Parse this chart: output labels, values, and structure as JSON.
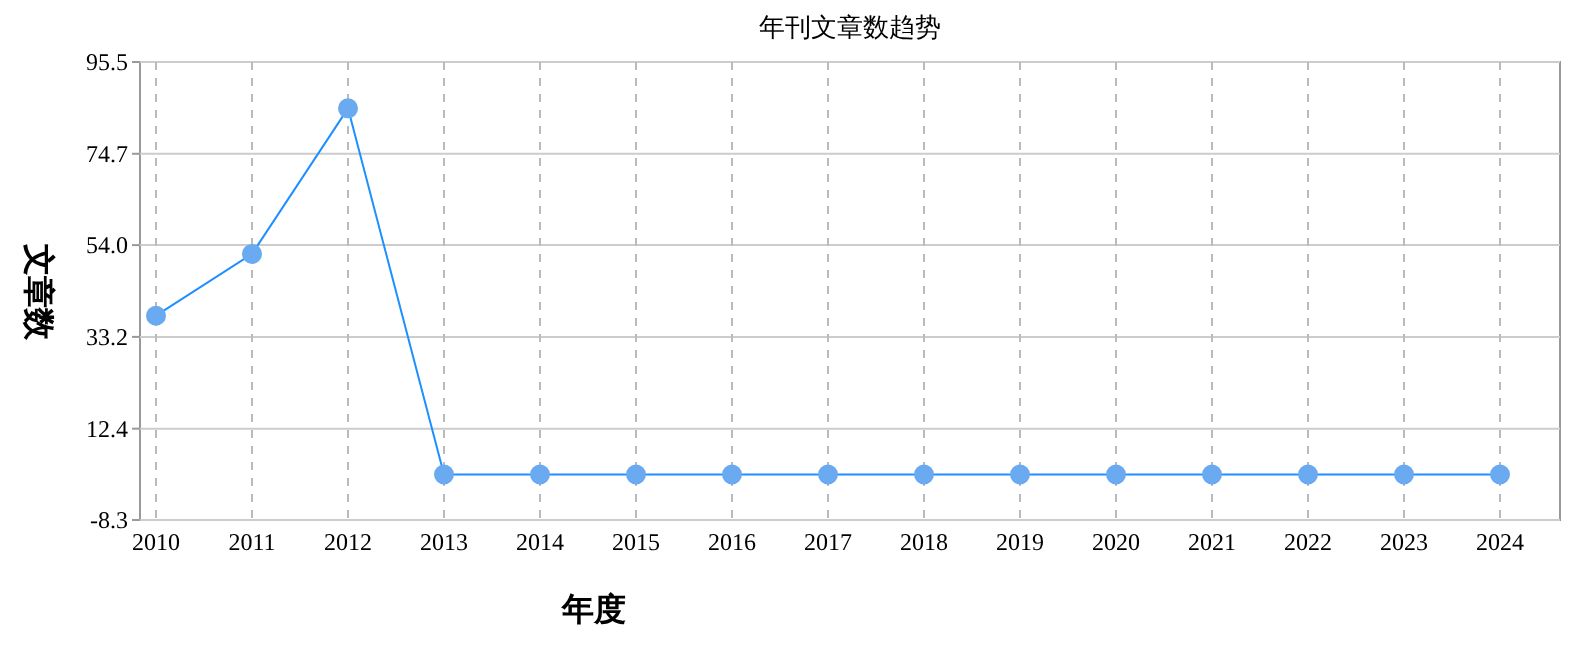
{
  "chart_data": {
    "type": "line",
    "title": "年刊文章数趋势",
    "xlabel": "年度",
    "ylabel": "文章数",
    "categories": [
      "2010",
      "2011",
      "2012",
      "2013",
      "2014",
      "2015",
      "2016",
      "2017",
      "2018",
      "2019",
      "2020",
      "2021",
      "2022",
      "2023",
      "2024"
    ],
    "series": [
      {
        "color": "#1e8fff",
        "values": [
          38,
          52,
          85,
          2,
          2,
          2,
          2,
          2,
          2,
          2,
          2,
          2,
          2,
          2,
          2
        ]
      }
    ],
    "ylim": [
      -8.3,
      95.5
    ],
    "yticks": [
      {
        "value": -8.3,
        "label": "-8.3"
      },
      {
        "value": 12.4,
        "label": "12.4"
      },
      {
        "value": 33.2,
        "label": "33.2"
      },
      {
        "value": 54,
        "label": "54.0"
      },
      {
        "value": 74.7,
        "label": "74.7"
      },
      {
        "value": 95.5,
        "label": "95.5"
      }
    ],
    "grid": true,
    "marker": "circle",
    "line_style": "solid"
  }
}
